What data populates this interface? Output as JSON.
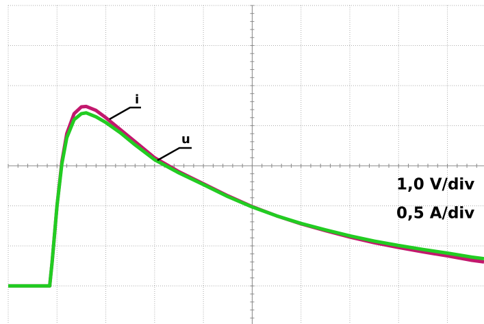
{
  "chart_data": {
    "type": "line",
    "x": [
      0,
      0.5,
      0.85,
      0.9,
      1.0,
      1.1,
      1.2,
      1.35,
      1.5,
      1.6,
      1.8,
      2.0,
      2.3,
      2.6,
      3.0,
      3.5,
      4.0,
      4.5,
      5.0,
      5.5,
      6.0,
      6.5,
      7.0,
      7.5,
      8.0,
      8.5,
      9.0,
      9.5,
      9.75
    ],
    "series": [
      {
        "name": "i",
        "color": "#c2186d",
        "values": [
          -3,
          -3,
          -3,
          -2.4,
          -1.0,
          0.1,
          0.8,
          1.3,
          1.47,
          1.48,
          1.38,
          1.2,
          0.9,
          0.6,
          0.2,
          -0.15,
          -0.45,
          -0.75,
          -1.02,
          -1.25,
          -1.45,
          -1.62,
          -1.78,
          -1.92,
          -2.04,
          -2.15,
          -2.25,
          -2.36,
          -2.4
        ]
      },
      {
        "name": "u",
        "color": "#22cc22",
        "values": [
          -3,
          -3,
          -3,
          -2.4,
          -1.0,
          0.05,
          0.7,
          1.15,
          1.3,
          1.32,
          1.22,
          1.08,
          0.82,
          0.52,
          0.15,
          -0.18,
          -0.47,
          -0.77,
          -1.03,
          -1.25,
          -1.44,
          -1.6,
          -1.75,
          -1.88,
          -1.99,
          -2.09,
          -2.18,
          -2.28,
          -2.32
        ]
      }
    ],
    "annotations": [
      "1,0 V/div",
      "0,5 A/div"
    ],
    "xlim": [
      0,
      9.75
    ],
    "ylim": [
      -3.95,
      4
    ],
    "xticks": [
      0,
      1,
      2,
      3,
      4,
      5,
      6,
      7,
      8,
      9
    ],
    "yticks": [
      -3,
      -2,
      -1,
      0,
      1,
      2,
      3,
      4
    ],
    "grid": true
  }
}
